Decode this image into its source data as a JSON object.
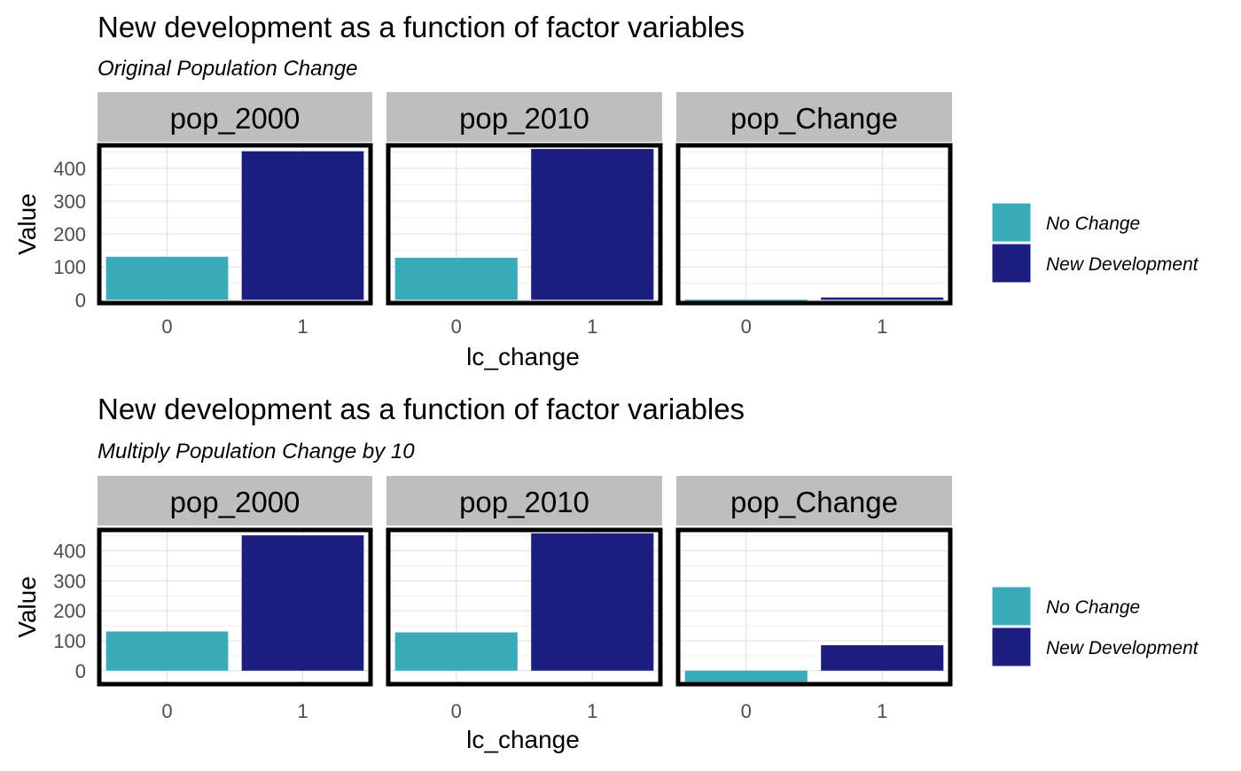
{
  "colors": {
    "no_change": "#3AA9BA",
    "new_development": "#1C1F80",
    "strip_bg": "#BEBEBE",
    "grid": "#DEDEDE",
    "panel_border": "#000000",
    "text": "#000000",
    "tick_text": "#4D4D4D"
  },
  "legend": [
    {
      "label": "No Change",
      "color": "#3AA9BA"
    },
    {
      "label": "New Development",
      "color": "#1C1F80"
    }
  ],
  "chart_data": [
    {
      "type": "bar",
      "title": "New development as a function of factor variables",
      "subtitle": "Original Population Change",
      "xlabel": "lc_change",
      "ylabel": "Value",
      "ylim": [
        -10,
        470
      ],
      "yticks": [
        0,
        100,
        200,
        300,
        400
      ],
      "categories": [
        "0",
        "1"
      ],
      "grid": true,
      "legend_position": "right",
      "facets": [
        {
          "label": "pop_2000",
          "values": [
            131,
            452
          ]
        },
        {
          "label": "pop_2010",
          "values": [
            128,
            459
          ]
        },
        {
          "label": "pop_Change",
          "values": [
            -3,
            7
          ]
        }
      ]
    },
    {
      "type": "bar",
      "title": "New development as a function of factor variables",
      "subtitle": "Multiply Population Change by 10",
      "xlabel": "lc_change",
      "ylabel": "Value",
      "ylim": [
        -45,
        470
      ],
      "yticks": [
        0,
        100,
        200,
        300,
        400
      ],
      "categories": [
        "0",
        "1"
      ],
      "grid": true,
      "legend_position": "right",
      "facets": [
        {
          "label": "pop_2000",
          "values": [
            131,
            452
          ]
        },
        {
          "label": "pop_2010",
          "values": [
            128,
            459
          ]
        },
        {
          "label": "pop_Change",
          "values": [
            -37,
            85
          ]
        }
      ]
    }
  ]
}
